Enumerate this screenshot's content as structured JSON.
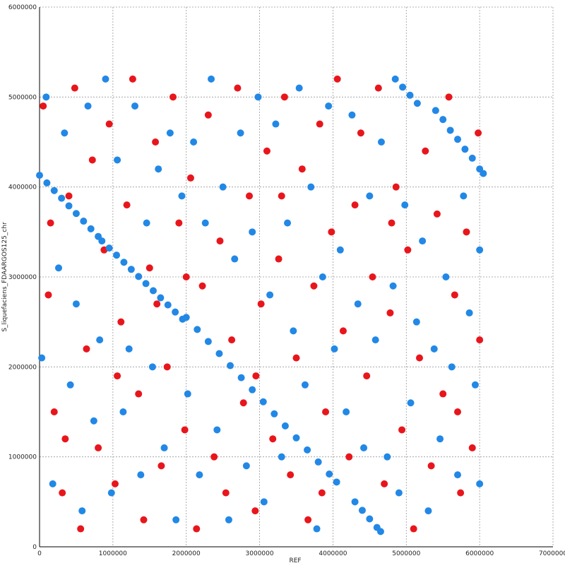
{
  "chart_data": {
    "type": "scatter",
    "x_label": "REF",
    "y_label": "S_liquefaciens_FDAARGOS125_chr",
    "xlim": [
      0,
      7000000
    ],
    "ylim": [
      0,
      6000000
    ],
    "xticks": [
      0,
      1000000,
      2000000,
      3000000,
      4000000,
      5000000,
      6000000,
      7000000
    ],
    "yticks": [
      0,
      1000000,
      2000000,
      3000000,
      4000000,
      5000000,
      6000000
    ],
    "grid": true,
    "series": [
      {
        "color": "#e8161c",
        "x": [
          50000,
          120000,
          200000,
          310000,
          400000,
          480000,
          560000,
          640000,
          720000,
          800000,
          880000,
          950000,
          1030000,
          1110000,
          1190000,
          1270000,
          1350000,
          1420000,
          1500000,
          1580000,
          1660000,
          1740000,
          1820000,
          1900000,
          1980000,
          2060000,
          2140000,
          2220000,
          2300000,
          2380000,
          2460000,
          2540000,
          2620000,
          2700000,
          2780000,
          2860000,
          2940000,
          3020000,
          3100000,
          3180000,
          3260000,
          3340000,
          3420000,
          3500000,
          3580000,
          3660000,
          3740000,
          3820000,
          3900000,
          3980000,
          4060000,
          4140000,
          4220000,
          4300000,
          4380000,
          4460000,
          4540000,
          4620000,
          4700000,
          4780000,
          4860000,
          4940000,
          5020000,
          5100000,
          5180000,
          5260000,
          5340000,
          5420000,
          5500000,
          5580000,
          5660000,
          5740000,
          5820000,
          5900000,
          5980000,
          6000000,
          150000,
          1060000,
          2000000,
          2950000,
          3850000,
          4800000,
          5700000,
          350000,
          1600000,
          3300000
        ],
        "values": [
          4900000,
          2800000,
          1500000,
          600000,
          3900000,
          5100000,
          200000,
          2200000,
          4300000,
          1100000,
          3300000,
          4700000,
          700000,
          2500000,
          3800000,
          5200000,
          1700000,
          300000,
          3100000,
          4500000,
          900000,
          2000000,
          5000000,
          3600000,
          1300000,
          4100000,
          200000,
          2900000,
          4800000,
          1000000,
          3400000,
          600000,
          2300000,
          5100000,
          1600000,
          3900000,
          400000,
          2700000,
          4400000,
          1200000,
          3200000,
          5000000,
          800000,
          2100000,
          4200000,
          300000,
          2900000,
          4700000,
          1500000,
          3500000,
          5200000,
          2400000,
          1000000,
          3800000,
          4600000,
          1900000,
          3000000,
          5100000,
          700000,
          2600000,
          4000000,
          1300000,
          3300000,
          200000,
          2100000,
          4400000,
          900000,
          3700000,
          1700000,
          5000000,
          2800000,
          600000,
          3500000,
          1100000,
          4600000,
          2300000,
          3600000,
          1900000,
          3000000,
          1900000,
          600000,
          3600000,
          1500000,
          1200000,
          2700000,
          3900000
        ]
      },
      {
        "color": "#2288e6",
        "x": [
          0,
          100000,
          200000,
          300000,
          400000,
          500000,
          600000,
          700000,
          800000,
          850000,
          950000,
          1050000,
          1150000,
          1250000,
          1350000,
          1450000,
          1550000,
          1650000,
          1750000,
          1850000,
          1950000,
          2000000,
          2150000,
          2300000,
          2450000,
          2600000,
          2750000,
          2900000,
          3050000,
          3200000,
          3350000,
          3500000,
          3650000,
          3800000,
          3950000,
          4050000,
          4300000,
          4400000,
          4500000,
          4600000,
          4650000,
          4850000,
          4950000,
          5050000,
          5150000,
          5400000,
          5500000,
          5600000,
          5700000,
          5800000,
          5900000,
          6000000,
          6050000,
          30000,
          90000,
          180000,
          260000,
          340000,
          420000,
          500000,
          580000,
          660000,
          740000,
          820000,
          900000,
          980000,
          1060000,
          1140000,
          1220000,
          1300000,
          1380000,
          1460000,
          1540000,
          1620000,
          1700000,
          1780000,
          1860000,
          1940000,
          2020000,
          2100000,
          2180000,
          2260000,
          2340000,
          2420000,
          2500000,
          2580000,
          2660000,
          2740000,
          2820000,
          2900000,
          2980000,
          3060000,
          3140000,
          3220000,
          3300000,
          3380000,
          3460000,
          3540000,
          3620000,
          3700000,
          3780000,
          3860000,
          3940000,
          4020000,
          4100000,
          4180000,
          4260000,
          4340000,
          4420000,
          4500000,
          4580000,
          4660000,
          4740000,
          4820000,
          4900000,
          4980000,
          5060000,
          5140000,
          5220000,
          5300000,
          5380000,
          5460000,
          5540000,
          5620000,
          5700000,
          5780000,
          5860000,
          5940000,
          6000000,
          6000000
        ],
        "values": [
          4130000,
          4045000,
          3960000,
          3875000,
          3790000,
          3705000,
          3620000,
          3535000,
          3450000,
          3400000,
          3321000,
          3242000,
          3163000,
          3084000,
          3005000,
          2926000,
          2847000,
          2768000,
          2689000,
          2610000,
          2531000,
          2550000,
          2416000,
          2282000,
          2148000,
          2014000,
          1880000,
          1746000,
          1612000,
          1478000,
          1344000,
          1211000,
          1077000,
          943000,
          809000,
          720000,
          500000,
          405000,
          310000,
          215000,
          170000,
          5200000,
          5110000,
          5020000,
          4930000,
          4850000,
          4750000,
          4630000,
          4530000,
          4420000,
          4320000,
          4200000,
          4150000,
          2100000,
          5000000,
          700000,
          3100000,
          4600000,
          1800000,
          2700000,
          400000,
          4900000,
          1400000,
          2300000,
          5200000,
          600000,
          4300000,
          1500000,
          2200000,
          4900000,
          800000,
          3600000,
          2000000,
          4200000,
          1100000,
          4600000,
          300000,
          3900000,
          1700000,
          4500000,
          800000,
          3600000,
          5200000,
          1300000,
          4000000,
          300000,
          3200000,
          4600000,
          900000,
          3500000,
          5000000,
          500000,
          2800000,
          4700000,
          1000000,
          3600000,
          2400000,
          5100000,
          1800000,
          4000000,
          200000,
          3000000,
          4900000,
          2200000,
          3300000,
          1500000,
          4800000,
          2700000,
          1100000,
          3900000,
          2300000,
          4500000,
          1000000,
          2900000,
          600000,
          3800000,
          1600000,
          2500000,
          3400000,
          400000,
          2200000,
          1200000,
          3000000,
          2000000,
          800000,
          3900000,
          2600000,
          1800000,
          3300000,
          700000
        ]
      }
    ]
  }
}
